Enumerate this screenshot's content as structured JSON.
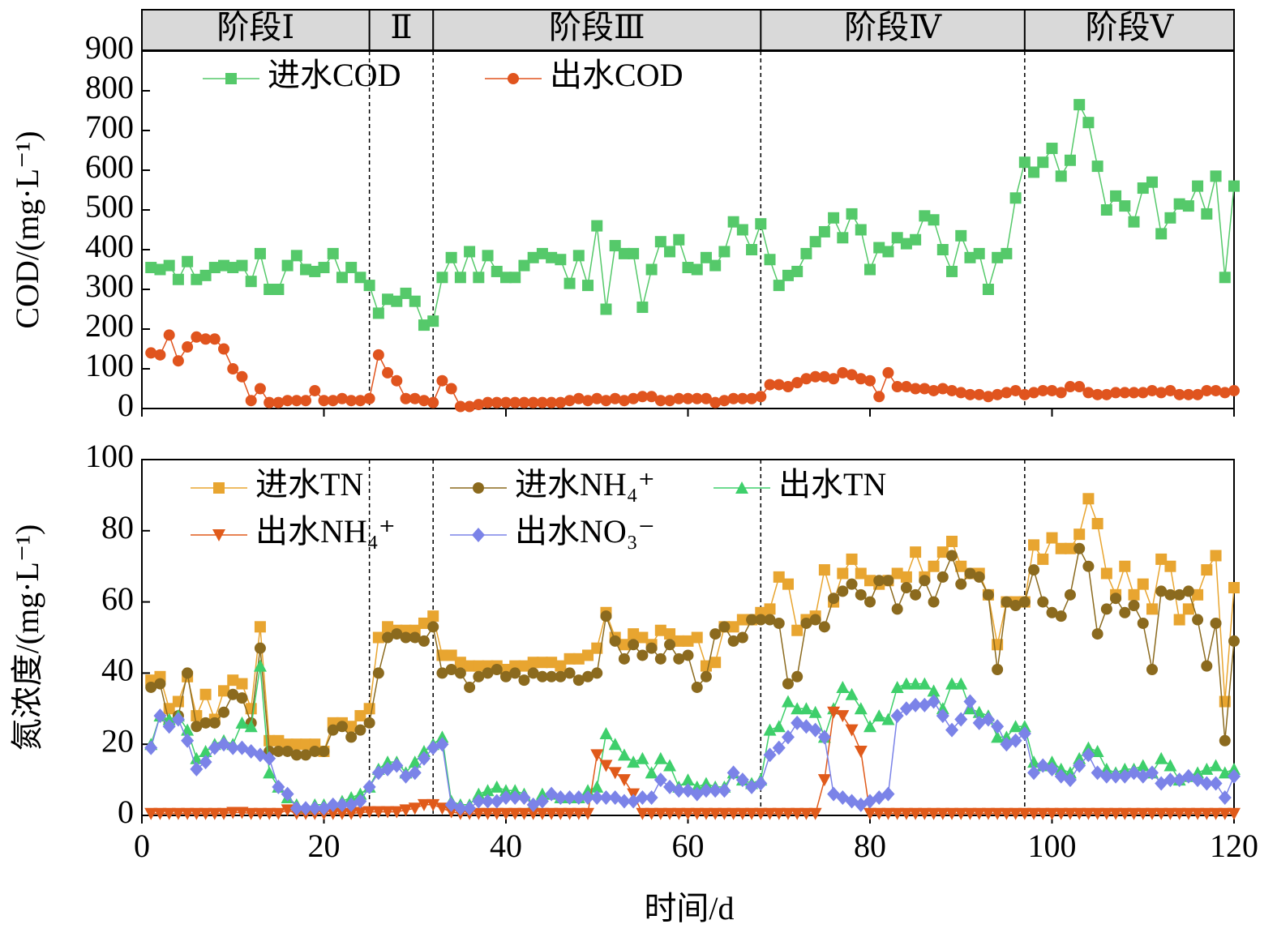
{
  "x_label": "时间/d",
  "phases": [
    {
      "label": "阶段Ⅰ",
      "start": 0,
      "end": 25
    },
    {
      "label": "Ⅱ",
      "start": 25,
      "end": 32
    },
    {
      "label": "阶段Ⅲ",
      "start": 32,
      "end": 68
    },
    {
      "label": "阶段Ⅳ",
      "start": 68,
      "end": 97
    },
    {
      "label": "阶段Ⅴ",
      "start": 97,
      "end": 120
    }
  ],
  "chart_data": [
    {
      "type": "line",
      "y_label": "COD/(mg·L⁻¹)",
      "xlim": [
        0,
        120
      ],
      "ylim": [
        0,
        900
      ],
      "yticks": [
        0,
        100,
        200,
        300,
        400,
        500,
        600,
        700,
        800,
        900
      ],
      "x": [
        1,
        2,
        3,
        4,
        5,
        6,
        7,
        8,
        9,
        10,
        11,
        12,
        13,
        14,
        15,
        16,
        17,
        18,
        19,
        20,
        21,
        22,
        23,
        24,
        25,
        26,
        27,
        28,
        29,
        30,
        31,
        32,
        33,
        34,
        35,
        36,
        37,
        38,
        39,
        40,
        41,
        42,
        43,
        44,
        45,
        46,
        47,
        48,
        49,
        50,
        51,
        52,
        53,
        54,
        55,
        56,
        57,
        58,
        59,
        60,
        61,
        62,
        63,
        64,
        65,
        66,
        67,
        68,
        69,
        70,
        71,
        72,
        73,
        74,
        75,
        76,
        77,
        78,
        79,
        80,
        81,
        82,
        83,
        84,
        85,
        86,
        87,
        88,
        89,
        90,
        91,
        92,
        93,
        94,
        95,
        96,
        97,
        98,
        99,
        100,
        101,
        102,
        103,
        104,
        105,
        106,
        107,
        108,
        109,
        110,
        111,
        112,
        113,
        114,
        115,
        116,
        117,
        118,
        119,
        120
      ],
      "series": [
        {
          "name": "进水COD",
          "color": "#55c96a",
          "marker": "square",
          "values": [
            355,
            350,
            360,
            325,
            370,
            325,
            335,
            355,
            360,
            355,
            360,
            320,
            390,
            300,
            300,
            360,
            385,
            350,
            345,
            355,
            390,
            330,
            355,
            330,
            310,
            240,
            275,
            270,
            290,
            270,
            210,
            220,
            330,
            380,
            330,
            395,
            330,
            385,
            345,
            330,
            330,
            360,
            380,
            390,
            380,
            375,
            315,
            385,
            310,
            460,
            250,
            410,
            390,
            390,
            255,
            350,
            420,
            395,
            425,
            355,
            350,
            380,
            360,
            395,
            470,
            450,
            400,
            465,
            375,
            310,
            335,
            345,
            390,
            420,
            445,
            480,
            430,
            490,
            450,
            350,
            405,
            395,
            430,
            415,
            425,
            485,
            475,
            400,
            345,
            435,
            380,
            390,
            300,
            380,
            390,
            530,
            620,
            595,
            620,
            655,
            585,
            625,
            765,
            720,
            610,
            500,
            535,
            510,
            470,
            555,
            570,
            440,
            480,
            515,
            510,
            560,
            490,
            585,
            330,
            560
          ]
        },
        {
          "name": "出水COD",
          "color": "#e0541e",
          "marker": "circle",
          "values": [
            140,
            135,
            185,
            120,
            155,
            180,
            175,
            175,
            150,
            100,
            80,
            20,
            50,
            15,
            15,
            20,
            20,
            20,
            45,
            20,
            20,
            25,
            20,
            20,
            25,
            135,
            90,
            70,
            25,
            25,
            20,
            15,
            70,
            50,
            5,
            5,
            10,
            15,
            15,
            15,
            15,
            15,
            15,
            15,
            15,
            15,
            20,
            25,
            20,
            25,
            20,
            25,
            20,
            25,
            30,
            30,
            20,
            20,
            25,
            25,
            25,
            25,
            15,
            20,
            25,
            25,
            25,
            30,
            60,
            60,
            55,
            65,
            75,
            80,
            80,
            75,
            90,
            85,
            75,
            70,
            30,
            90,
            55,
            55,
            50,
            50,
            45,
            50,
            45,
            40,
            35,
            35,
            30,
            35,
            40,
            45,
            35,
            40,
            45,
            45,
            40,
            55,
            55,
            40,
            35,
            35,
            40,
            40,
            40,
            40,
            45,
            40,
            45,
            35,
            35,
            35,
            45,
            45,
            40,
            45
          ]
        }
      ]
    },
    {
      "type": "line",
      "y_label": "氮浓度/(mg·L⁻¹)",
      "xlim": [
        0,
        120
      ],
      "ylim": [
        0,
        100
      ],
      "yticks": [
        0,
        20,
        40,
        60,
        80,
        100
      ],
      "xticks": [
        0,
        20,
        40,
        60,
        80,
        100,
        120
      ],
      "x": [
        1,
        2,
        3,
        4,
        5,
        6,
        7,
        8,
        9,
        10,
        11,
        12,
        13,
        14,
        15,
        16,
        17,
        18,
        19,
        20,
        21,
        22,
        23,
        24,
        25,
        26,
        27,
        28,
        29,
        30,
        31,
        32,
        33,
        34,
        35,
        36,
        37,
        38,
        39,
        40,
        41,
        42,
        43,
        44,
        45,
        46,
        47,
        48,
        49,
        50,
        51,
        52,
        53,
        54,
        55,
        56,
        57,
        58,
        59,
        60,
        61,
        62,
        63,
        64,
        65,
        66,
        67,
        68,
        69,
        70,
        71,
        72,
        73,
        74,
        75,
        76,
        77,
        78,
        79,
        80,
        81,
        82,
        83,
        84,
        85,
        86,
        87,
        88,
        89,
        90,
        91,
        92,
        93,
        94,
        95,
        96,
        97,
        98,
        99,
        100,
        101,
        102,
        103,
        104,
        105,
        106,
        107,
        108,
        109,
        110,
        111,
        112,
        113,
        114,
        115,
        116,
        117,
        118,
        119,
        120
      ],
      "series": [
        {
          "name": "进水TN",
          "color": "#e8a530",
          "marker": "square",
          "values": [
            38,
            39,
            30,
            32,
            39,
            28,
            34,
            27,
            35,
            38,
            37,
            30,
            53,
            21,
            21,
            20,
            20,
            20,
            20,
            18,
            26,
            26,
            25,
            28,
            30,
            50,
            53,
            52,
            52,
            52,
            54,
            56,
            45,
            45,
            43,
            42,
            42,
            42,
            42,
            41,
            42,
            42,
            43,
            43,
            43,
            42,
            44,
            44,
            45,
            47,
            57,
            50,
            48,
            51,
            50,
            48,
            52,
            51,
            49,
            49,
            50,
            42,
            43,
            53,
            53,
            55,
            55,
            57,
            58,
            67,
            65,
            52,
            55,
            56,
            69,
            60,
            68,
            72,
            68,
            66,
            65,
            66,
            68,
            67,
            74,
            67,
            70,
            74,
            77,
            70,
            68,
            68,
            62,
            48,
            60,
            60,
            60,
            76,
            72,
            78,
            75,
            75,
            79,
            89,
            82,
            68,
            62,
            70,
            62,
            65,
            58,
            72,
            70,
            55,
            58,
            62,
            69,
            73,
            32,
            64
          ]
        },
        {
          "name": "进水NH₄⁺",
          "color": "#8b6a1e",
          "marker": "circle",
          "values": [
            36,
            37,
            26,
            28,
            40,
            25,
            26,
            26,
            29,
            34,
            33,
            26,
            47,
            18,
            18,
            18,
            17,
            17,
            18,
            18,
            24,
            25,
            22,
            24,
            26,
            40,
            50,
            51,
            50,
            50,
            49,
            53,
            40,
            41,
            40,
            36,
            39,
            40,
            41,
            39,
            40,
            38,
            40,
            39,
            39,
            39,
            40,
            38,
            39,
            40,
            56,
            49,
            44,
            48,
            45,
            47,
            44,
            48,
            44,
            45,
            36,
            39,
            51,
            53,
            49,
            50,
            55,
            55,
            55,
            54,
            37,
            39,
            54,
            55,
            53,
            61,
            63,
            65,
            62,
            60,
            66,
            66,
            58,
            64,
            62,
            66,
            60,
            67,
            73,
            65,
            68,
            67,
            62,
            41,
            60,
            59,
            60,
            69,
            60,
            57,
            56,
            62,
            75,
            70,
            51,
            58,
            61,
            57,
            59,
            54,
            41,
            63,
            62,
            62,
            63,
            55,
            42,
            54,
            21,
            49
          ]
        },
        {
          "name": "出水TN",
          "color": "#3ecf6b",
          "marker": "tri-up",
          "values": [
            20,
            28,
            27,
            28,
            24,
            16,
            18,
            20,
            21,
            20,
            26,
            25,
            42,
            12,
            8,
            5,
            3,
            2,
            3,
            3,
            3,
            4,
            5,
            6,
            8,
            13,
            15,
            15,
            12,
            15,
            18,
            20,
            22,
            4,
            3,
            3,
            6,
            7,
            8,
            7,
            7,
            6,
            3,
            6,
            6,
            5,
            5,
            5,
            7,
            8,
            23,
            20,
            17,
            15,
            16,
            12,
            16,
            14,
            8,
            10,
            8,
            9,
            8,
            8,
            12,
            10,
            9,
            10,
            24,
            25,
            32,
            30,
            30,
            29,
            22,
            30,
            36,
            34,
            30,
            25,
            28,
            27,
            36,
            37,
            37,
            37,
            35,
            30,
            37,
            37,
            30,
            29,
            28,
            22,
            22,
            25,
            25,
            15,
            14,
            15,
            13,
            12,
            16,
            19,
            18,
            13,
            12,
            13,
            13,
            14,
            12,
            16,
            14,
            10,
            11,
            12,
            13,
            14,
            12,
            13
          ]
        },
        {
          "name": "出水NH₄⁺",
          "color": "#e05a1a",
          "marker": "tri-down",
          "values": [
            0.5,
            0.5,
            0.5,
            0.5,
            0.5,
            0.5,
            0.5,
            0.5,
            0.5,
            0.8,
            0.8,
            0.5,
            0.5,
            0.5,
            0.5,
            1.5,
            0.5,
            0.5,
            0.5,
            0.5,
            0.5,
            0.5,
            0.5,
            0.8,
            1,
            1,
            1,
            1,
            1.5,
            2,
            3,
            3,
            2,
            1,
            0.5,
            0.5,
            0.5,
            0.5,
            0.5,
            0.5,
            0.5,
            0.5,
            0.5,
            0.5,
            0.5,
            0.5,
            0.5,
            0.5,
            0.5,
            17,
            14,
            12,
            10,
            6,
            0.5,
            0.5,
            0.5,
            0.5,
            0.5,
            0.5,
            0.5,
            0.5,
            0.5,
            0.5,
            0.5,
            0.5,
            0.5,
            0.5,
            0.5,
            0.5,
            0.5,
            0.5,
            0.5,
            0.5,
            10,
            29,
            28,
            24,
            18,
            0.5,
            0.5,
            0.5,
            0.5,
            0.5,
            0.5,
            0.5,
            0.5,
            0.5,
            0.5,
            0.5,
            0.5,
            0.5,
            0.5,
            0.5,
            0.5,
            0.5,
            0.5,
            0.5,
            0.5,
            0.5,
            0.5,
            0.5,
            0.5,
            0.5,
            0.5,
            0.5,
            0.5,
            0.5,
            0.5,
            0.5,
            0.5,
            0.5,
            0.5,
            0.5,
            0.5,
            0.5,
            0.5,
            0.5,
            0.5,
            0.5
          ]
        },
        {
          "name": "出水NO₃⁻",
          "color": "#7b83e8",
          "marker": "diamond",
          "values": [
            19,
            28,
            25,
            27,
            21,
            13,
            15,
            19,
            20,
            19,
            19,
            18,
            17,
            16,
            8,
            6,
            2,
            2,
            2,
            2,
            3,
            3,
            3,
            4,
            8,
            12,
            13,
            14,
            11,
            12,
            16,
            19,
            20,
            3,
            2,
            2,
            4,
            4,
            4,
            5,
            5,
            5,
            3,
            4,
            6,
            5,
            5,
            5,
            5,
            5,
            5,
            5,
            4,
            4,
            5,
            5,
            10,
            8,
            7,
            7,
            6,
            7,
            7,
            7,
            12,
            10,
            8,
            9,
            17,
            19,
            22,
            26,
            25,
            24,
            22,
            6,
            5,
            4,
            3,
            4,
            5,
            6,
            28,
            30,
            31,
            31,
            32,
            28,
            24,
            27,
            32,
            26,
            27,
            25,
            20,
            21,
            23,
            12,
            14,
            13,
            11,
            10,
            14,
            17,
            12,
            11,
            11,
            11,
            12,
            11,
            12,
            9,
            10,
            10,
            11,
            10,
            9,
            9,
            5,
            11
          ]
        }
      ]
    }
  ]
}
